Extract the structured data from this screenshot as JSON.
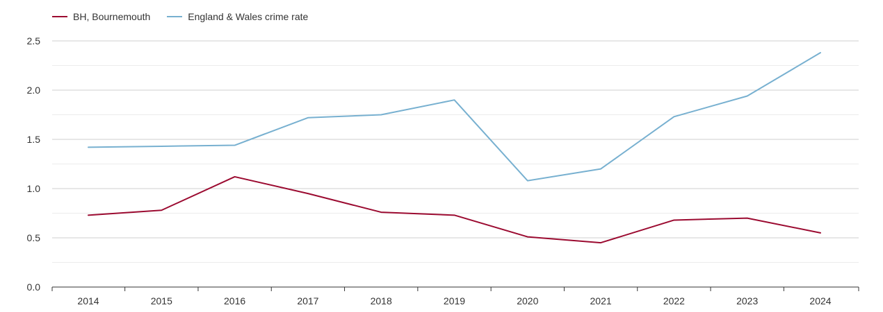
{
  "chart_data": {
    "type": "line",
    "title": "",
    "xlabel": "",
    "ylabel": "",
    "categories": [
      "2014",
      "2015",
      "2016",
      "2017",
      "2018",
      "2019",
      "2020",
      "2021",
      "2022",
      "2023",
      "2024"
    ],
    "ylim": [
      0,
      2.5
    ],
    "yticks": [
      "0.0",
      "0.5",
      "1.0",
      "1.5",
      "2.0",
      "2.5"
    ],
    "grid": true,
    "legend_position": "top-left",
    "series": [
      {
        "name": "BH, Bournemouth",
        "color": "#9b0a30",
        "values": [
          0.73,
          0.78,
          1.12,
          0.95,
          0.76,
          0.73,
          0.51,
          0.45,
          0.68,
          0.7,
          0.55
        ]
      },
      {
        "name": "England & Wales crime rate",
        "color": "#77b0d0",
        "values": [
          1.42,
          1.43,
          1.44,
          1.72,
          1.75,
          1.9,
          1.08,
          1.2,
          1.73,
          1.94,
          2.38
        ]
      }
    ]
  }
}
